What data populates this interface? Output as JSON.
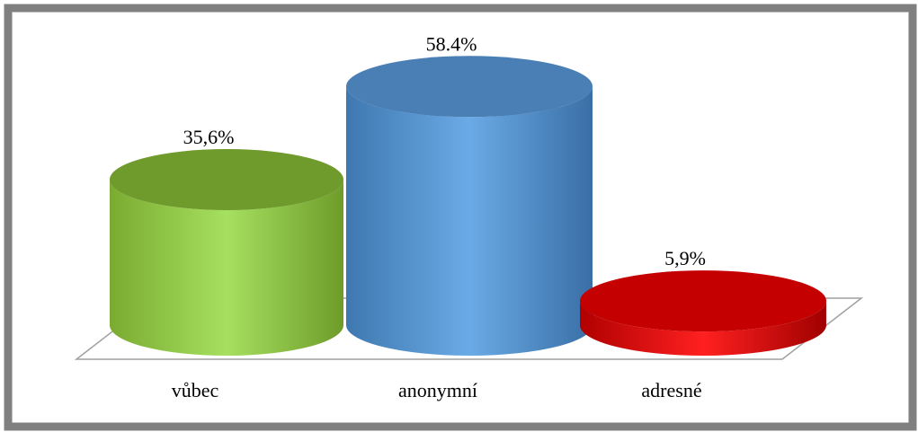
{
  "chart_data": {
    "type": "cylinder-bar",
    "categories": [
      "vůbec",
      "anonymní",
      "adresné"
    ],
    "values": [
      35.6,
      58.4,
      5.9
    ],
    "value_labels": [
      "35,6%",
      "58.4%",
      "5,9%"
    ],
    "colors": [
      "#8cc63f",
      "#5b9bd5",
      "#e00000"
    ]
  }
}
